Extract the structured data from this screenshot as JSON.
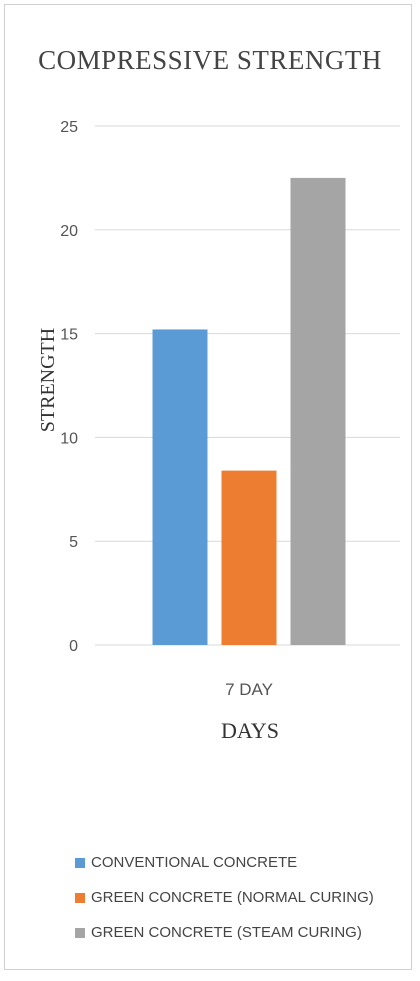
{
  "chart_data": {
    "type": "bar",
    "title": "COMPRESSIVE STRENGTH",
    "xlabel": "DAYS",
    "ylabel": "STRENGTH",
    "categories": [
      "7 DAY"
    ],
    "ylim": [
      0,
      25
    ],
    "yticks": [
      0,
      5,
      10,
      15,
      20,
      25
    ],
    "grid": true,
    "legend_position": "bottom",
    "series": [
      {
        "name": "CONVENTIONAL CONCRETE",
        "values": [
          15.2
        ],
        "color": "#5b9bd5"
      },
      {
        "name": "GREEN CONCRETE (NORMAL CURING)",
        "values": [
          8.4
        ],
        "color": "#ed7d31"
      },
      {
        "name": "GREEN CONCRETE (STEAM CURING)",
        "values": [
          22.5
        ],
        "color": "#a5a5a5"
      }
    ]
  }
}
